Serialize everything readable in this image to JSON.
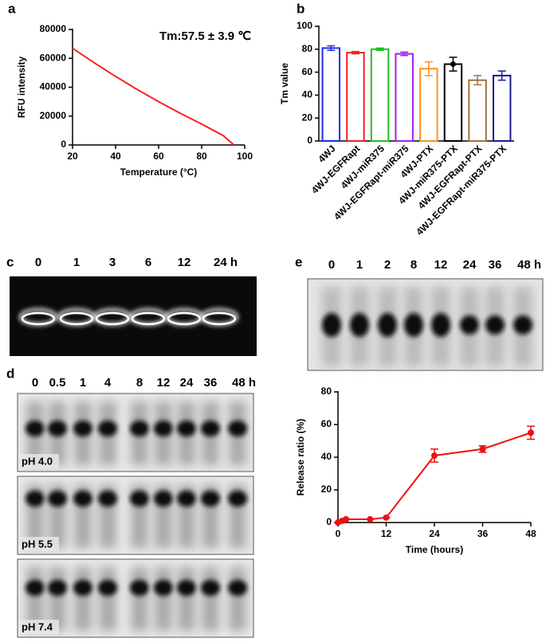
{
  "chart_data": [
    {
      "panel": "a",
      "type": "line",
      "title": "Tm:57.5 ± 3.9 ℃",
      "x_label": "Temperature (°C)",
      "y_label": "RFU intensity",
      "x": [
        20,
        30,
        40,
        50,
        60,
        70,
        80,
        90,
        95
      ],
      "values": [
        67000,
        57000,
        47500,
        38500,
        30000,
        22000,
        14500,
        6500,
        0
      ],
      "color": "#ff2020",
      "xlim": [
        20,
        100
      ],
      "xticks": [
        20,
        40,
        60,
        80,
        100
      ],
      "ylim": [
        0,
        80000
      ],
      "yticks": [
        0,
        20000,
        40000,
        60000,
        80000
      ]
    },
    {
      "panel": "b",
      "type": "bar",
      "y_label": "Tm value",
      "categories": [
        "4WJ",
        "4WJ-EGFRapt",
        "4WJ-miR375",
        "4WJ-EGFRapt-miR375",
        "4WJ-PTX",
        "4WJ-miR375-PTX",
        "4WJ-EGFRapt-PTX",
        "4WJ-EGFRapt-miR375-PTX"
      ],
      "values": [
        81,
        77,
        80,
        76,
        63,
        67,
        53,
        57
      ],
      "errors": [
        2,
        1,
        1,
        1.5,
        6,
        6,
        4,
        4
      ],
      "colors": [
        "#1f2ff0",
        "#f02020",
        "#20c020",
        "#a020f0",
        "#ff9020",
        "#000000",
        "#a07040",
        "#1a1a8f"
      ],
      "ylim": [
        0,
        100
      ],
      "yticks": [
        0,
        20,
        40,
        60,
        80,
        100
      ]
    },
    {
      "type": "line",
      "x_label": "Time (hours)",
      "y_label": "Release ratio (%)",
      "x": [
        0,
        1,
        2,
        8,
        12,
        24,
        36,
        48
      ],
      "values": [
        0,
        1,
        2,
        2,
        3,
        41,
        45,
        55
      ],
      "errors": [
        0,
        0,
        0,
        0,
        0,
        4,
        2,
        4
      ],
      "color": "#ee1111",
      "xlim": [
        0,
        48
      ],
      "xticks": [
        0,
        12,
        24,
        36,
        48
      ],
      "ylim": [
        0,
        80
      ],
      "yticks": [
        0,
        20,
        40,
        60,
        80
      ]
    }
  ],
  "gels": {
    "c": {
      "panel": "c",
      "lanes": [
        "0",
        "1",
        "3",
        "6",
        "12",
        "24 h"
      ]
    },
    "d": {
      "panel": "d",
      "lanes": [
        "0",
        "0.5",
        "1",
        "4",
        "8",
        "12",
        "24",
        "36",
        "48 h"
      ],
      "conditions": [
        "pH 4.0",
        "pH 5.5",
        "pH 7.4"
      ]
    },
    "e": {
      "panel": "e",
      "lanes": [
        "0",
        "1",
        "2",
        "8",
        "12",
        "24",
        "36",
        "48 h"
      ]
    }
  }
}
